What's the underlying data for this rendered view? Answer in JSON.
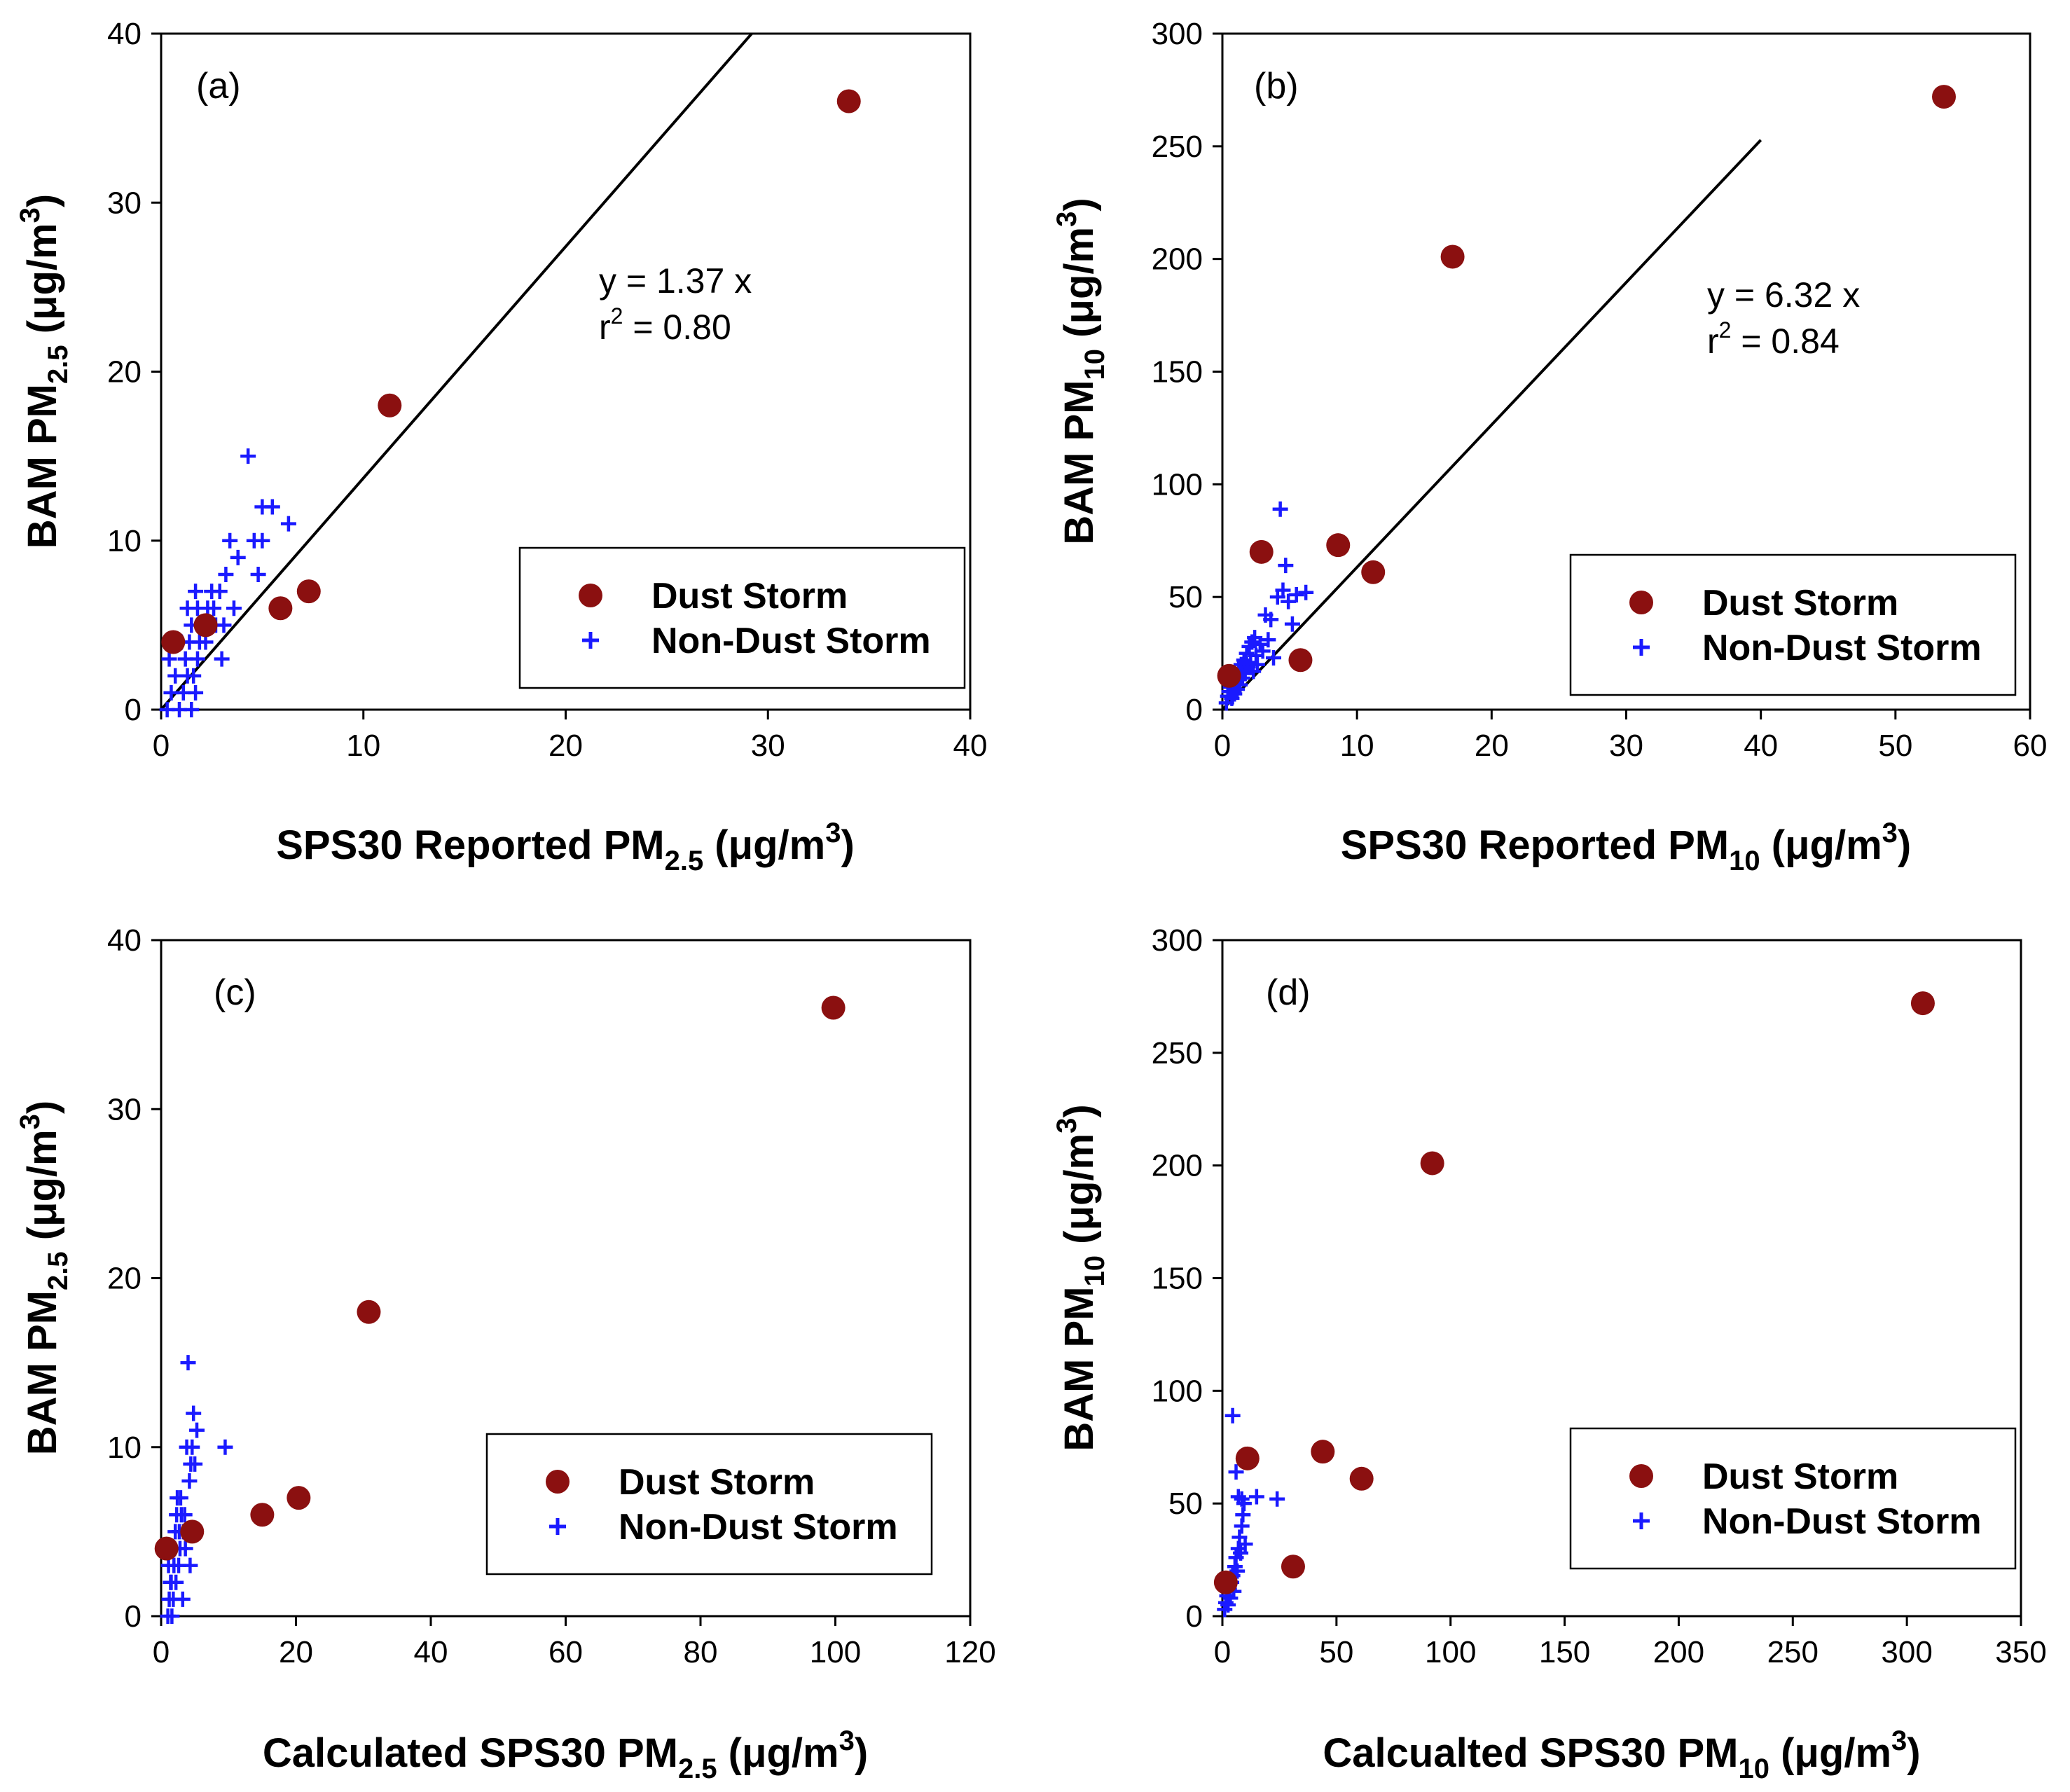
{
  "colors": {
    "dust": "#8b1010",
    "non_dust": "#1a1aff",
    "axis": "#000000",
    "fit": "#000000"
  },
  "chart_data": [
    {
      "type": "scatter",
      "panel_label": "(a)",
      "xlabel": {
        "prefix": "SPS30 Reported PM",
        "sub": "2.5",
        "suffix": " (μg/m",
        "sup": "3",
        "end": ")"
      },
      "ylabel": {
        "prefix": "BAM PM",
        "sub": "2.5",
        "suffix": " (μg/m",
        "sup": "3",
        "end": ")"
      },
      "xlim": [
        0,
        40
      ],
      "ylim": [
        0,
        40
      ],
      "xticks": [
        "0",
        "10",
        "20",
        "30",
        "40"
      ],
      "yticks": [
        "0",
        "10",
        "20",
        "30",
        "40"
      ],
      "fit": {
        "slope": 1.37,
        "x_end": 29.2,
        "line1": "y = 1.37 x",
        "line2_prefix": "r",
        "line2_sup": "2",
        "line2_suffix": " = 0.80"
      },
      "legend": {
        "dust": "Dust Storm",
        "non_dust": "Non-Dust Storm"
      },
      "series": [
        {
          "name": "Dust Storm",
          "marker": "circle",
          "points": [
            [
              0.6,
              4
            ],
            [
              2.2,
              5
            ],
            [
              5.9,
              6
            ],
            [
              7.3,
              7
            ],
            [
              11.3,
              18
            ],
            [
              34,
              36
            ]
          ]
        },
        {
          "name": "Non-Dust Storm",
          "marker": "plus",
          "points": [
            [
              0.3,
              0
            ],
            [
              0.5,
              1
            ],
            [
              0.7,
              2
            ],
            [
              0.4,
              3
            ],
            [
              0.9,
              0
            ],
            [
              1.1,
              1
            ],
            [
              1.3,
              2
            ],
            [
              1.2,
              3
            ],
            [
              1.0,
              4
            ],
            [
              1.5,
              0
            ],
            [
              1.7,
              1
            ],
            [
              1.6,
              2
            ],
            [
              1.8,
              3
            ],
            [
              1.4,
              4
            ],
            [
              1.5,
              5
            ],
            [
              1.3,
              6
            ],
            [
              1.9,
              4
            ],
            [
              2.0,
              5
            ],
            [
              1.8,
              6
            ],
            [
              1.7,
              7
            ],
            [
              2.2,
              4
            ],
            [
              2.4,
              5
            ],
            [
              2.3,
              6
            ],
            [
              2.5,
              7
            ],
            [
              2.6,
              6
            ],
            [
              2.7,
              5
            ],
            [
              2.9,
              7
            ],
            [
              3.0,
              3
            ],
            [
              3.1,
              5
            ],
            [
              3.2,
              8
            ],
            [
              3.4,
              10
            ],
            [
              3.6,
              6
            ],
            [
              3.8,
              9
            ],
            [
              4.3,
              15
            ],
            [
              4.6,
              10
            ],
            [
              4.8,
              8
            ],
            [
              5.0,
              10
            ],
            [
              5.0,
              12
            ],
            [
              5.5,
              12
            ],
            [
              6.3,
              11
            ]
          ]
        }
      ]
    },
    {
      "type": "scatter",
      "panel_label": "(b)",
      "xlabel": {
        "prefix": "SPS30 Reported PM",
        "sub": "10",
        "suffix": " (μg/m",
        "sup": "3",
        "end": ")"
      },
      "ylabel": {
        "prefix": "BAM PM",
        "sub": "10",
        "suffix": " (μg/m",
        "sup": "3",
        "end": ")"
      },
      "xlim": [
        0,
        60
      ],
      "ylim": [
        0,
        300
      ],
      "xticks": [
        "0",
        "10",
        "20",
        "30",
        "40",
        "50",
        "60"
      ],
      "yticks": [
        "0",
        "50",
        "100",
        "150",
        "200",
        "250",
        "300"
      ],
      "fit": {
        "slope": 6.32,
        "x_end": 40,
        "line1": "y = 6.32 x",
        "line2_prefix": "r",
        "line2_sup": "2",
        "line2_suffix": " = 0.84"
      },
      "legend": {
        "dust": "Dust Storm",
        "non_dust": "Non-Dust Storm"
      },
      "series": [
        {
          "name": "Dust Storm",
          "marker": "circle",
          "points": [
            [
              0.5,
              15
            ],
            [
              2.9,
              70
            ],
            [
              5.8,
              22
            ],
            [
              8.6,
              73
            ],
            [
              11.2,
              61
            ],
            [
              17.1,
              201
            ],
            [
              53.6,
              272
            ]
          ]
        },
        {
          "name": "Non-Dust Storm",
          "marker": "plus",
          "points": [
            [
              0.3,
              3
            ],
            [
              0.4,
              6
            ],
            [
              0.5,
              8
            ],
            [
              0.6,
              10
            ],
            [
              0.7,
              5
            ],
            [
              0.8,
              12
            ],
            [
              0.9,
              7
            ],
            [
              1.0,
              15
            ],
            [
              1.1,
              9
            ],
            [
              1.2,
              18
            ],
            [
              1.3,
              11
            ],
            [
              1.4,
              20
            ],
            [
              1.5,
              14
            ],
            [
              1.6,
              22
            ],
            [
              1.7,
              16
            ],
            [
              1.8,
              25
            ],
            [
              1.9,
              19
            ],
            [
              2.0,
              28
            ],
            [
              2.1,
              21
            ],
            [
              2.2,
              30
            ],
            [
              2.3,
              17
            ],
            [
              2.4,
              32
            ],
            [
              2.5,
              24
            ],
            [
              2.6,
              20
            ],
            [
              2.8,
              29
            ],
            [
              3.0,
              26
            ],
            [
              3.2,
              42
            ],
            [
              3.4,
              31
            ],
            [
              3.6,
              40
            ],
            [
              3.8,
              23
            ],
            [
              4.1,
              50
            ],
            [
              4.3,
              89
            ],
            [
              4.5,
              53
            ],
            [
              4.7,
              64
            ],
            [
              4.9,
              48
            ],
            [
              5.2,
              38
            ],
            [
              5.5,
              51
            ],
            [
              6.2,
              52
            ]
          ]
        }
      ]
    },
    {
      "type": "scatter",
      "panel_label": "(c)",
      "xlabel": {
        "prefix": "Calculated SPS30 PM",
        "sub": "2.5",
        "suffix": " (μg/m",
        "sup": "3",
        "end": ")"
      },
      "ylabel": {
        "prefix": "BAM PM",
        "sub": "2.5",
        "suffix": " (μg/m",
        "sup": "3",
        "end": ")"
      },
      "xlim": [
        0,
        120
      ],
      "ylim": [
        0,
        40
      ],
      "xticks": [
        "0",
        "20",
        "40",
        "60",
        "80",
        "100",
        "120"
      ],
      "yticks": [
        "0",
        "10",
        "20",
        "30",
        "40"
      ],
      "legend": {
        "dust": "Dust Storm",
        "non_dust": "Non-Dust Storm"
      },
      "series": [
        {
          "name": "Dust Storm",
          "marker": "circle",
          "points": [
            [
              0.8,
              4
            ],
            [
              4.6,
              5
            ],
            [
              15,
              6
            ],
            [
              20.4,
              7
            ],
            [
              30.8,
              18
            ],
            [
              99.7,
              36
            ]
          ]
        },
        {
          "name": "Non-Dust Storm",
          "marker": "plus",
          "points": [
            [
              1.0,
              0
            ],
            [
              1.2,
              1
            ],
            [
              1.4,
              2
            ],
            [
              1.1,
              3
            ],
            [
              1.6,
              0
            ],
            [
              1.8,
              1
            ],
            [
              1.5,
              2
            ],
            [
              1.9,
              3
            ],
            [
              2.0,
              4
            ],
            [
              2.2,
              2
            ],
            [
              2.1,
              5
            ],
            [
              2.3,
              6
            ],
            [
              2.4,
              7
            ],
            [
              2.6,
              3
            ],
            [
              2.8,
              4
            ],
            [
              2.7,
              5
            ],
            [
              3.0,
              6
            ],
            [
              2.9,
              7
            ],
            [
              3.2,
              1
            ],
            [
              3.3,
              5
            ],
            [
              3.5,
              6
            ],
            [
              3.6,
              4
            ],
            [
              3.8,
              10
            ],
            [
              4.0,
              15
            ],
            [
              4.2,
              8
            ],
            [
              4.3,
              3
            ],
            [
              4.4,
              9
            ],
            [
              4.6,
              10
            ],
            [
              4.8,
              12
            ],
            [
              5.0,
              9
            ],
            [
              5.3,
              11
            ],
            [
              9.5,
              10
            ]
          ]
        }
      ]
    },
    {
      "type": "scatter",
      "panel_label": "(d)",
      "xlabel": {
        "prefix": "Calcualted SPS30 PM",
        "sub": "10",
        "suffix": " (μg/m",
        "sup": "3",
        "end": ")"
      },
      "ylabel": {
        "prefix": "BAM PM",
        "sub": "10",
        "suffix": " (μg/m",
        "sup": "3",
        "end": ")"
      },
      "xlim": [
        0,
        350
      ],
      "ylim": [
        0,
        300
      ],
      "xticks": [
        "0",
        "50",
        "100",
        "150",
        "200",
        "250",
        "300",
        "350"
      ],
      "yticks": [
        "0",
        "50",
        "100",
        "150",
        "200",
        "250",
        "300"
      ],
      "legend": {
        "dust": "Dust Storm",
        "non_dust": "Non-Dust Storm"
      },
      "series": [
        {
          "name": "Dust Storm",
          "marker": "circle",
          "points": [
            [
              1.5,
              15
            ],
            [
              11,
              70
            ],
            [
              31,
              22
            ],
            [
              44,
              73
            ],
            [
              61,
              61
            ],
            [
              92,
              201
            ],
            [
              307,
              272
            ]
          ]
        },
        {
          "name": "Non-Dust Storm",
          "marker": "plus",
          "points": [
            [
              1.0,
              3
            ],
            [
              1.5,
              6
            ],
            [
              2.0,
              9
            ],
            [
              2.5,
              5
            ],
            [
              3.0,
              12
            ],
            [
              3.5,
              8
            ],
            [
              4.0,
              15
            ],
            [
              4.5,
              18
            ],
            [
              5.0,
              11
            ],
            [
              5.5,
              22
            ],
            [
              6.0,
              26
            ],
            [
              6.5,
              20
            ],
            [
              7.0,
              30
            ],
            [
              7.5,
              35
            ],
            [
              8.0,
              28
            ],
            [
              8.5,
              40
            ],
            [
              9.0,
              45
            ],
            [
              9.5,
              50
            ],
            [
              4.5,
              89
            ],
            [
              6.0,
              64
            ],
            [
              7.0,
              53
            ],
            [
              8.5,
              52
            ],
            [
              10.0,
              32
            ],
            [
              15.0,
              53
            ],
            [
              24.0,
              52
            ]
          ]
        }
      ]
    }
  ]
}
